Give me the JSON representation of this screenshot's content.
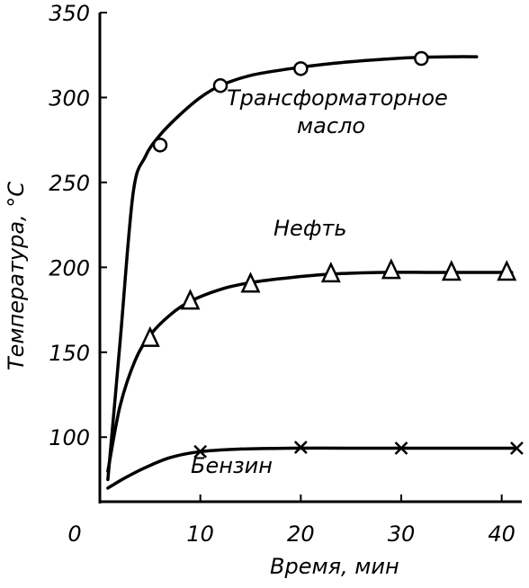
{
  "chart_data": {
    "type": "line",
    "xlabel": "Время, мин",
    "ylabel": "Температура, °C",
    "xlim": [
      0,
      42
    ],
    "ylim": [
      62,
      350
    ],
    "x_ticks": [
      {
        "value": 0,
        "label": "0"
      },
      {
        "value": 10,
        "label": "10"
      },
      {
        "value": 20,
        "label": "20"
      },
      {
        "value": 30,
        "label": "30"
      },
      {
        "value": 40,
        "label": "40"
      }
    ],
    "y_ticks": [
      {
        "value": 100,
        "label": "100"
      },
      {
        "value": 150,
        "label": "150"
      },
      {
        "value": 200,
        "label": "200"
      },
      {
        "value": 250,
        "label": "250"
      },
      {
        "value": 300,
        "label": "300"
      },
      {
        "value": 350,
        "label": "350"
      }
    ],
    "grid": false,
    "legend": "none",
    "series": [
      {
        "name": "Трансформаторное масло",
        "label_lines": [
          "Трансформаторное",
          "масло"
        ],
        "marker": "circle",
        "curve": [
          [
            0.8,
            75
          ],
          [
            2,
            155
          ],
          [
            3.3,
            243
          ],
          [
            4.5,
            265
          ],
          [
            6,
            278
          ],
          [
            8,
            290
          ],
          [
            10,
            300
          ],
          [
            12,
            307
          ],
          [
            15,
            313
          ],
          [
            19,
            317
          ],
          [
            23,
            320
          ],
          [
            27,
            322
          ],
          [
            31,
            323.5
          ],
          [
            35,
            324
          ],
          [
            37.5,
            324
          ]
        ],
        "points": [
          [
            6,
            272
          ],
          [
            12,
            307
          ],
          [
            20,
            317
          ],
          [
            32,
            323
          ]
        ]
      },
      {
        "name": "Нефть",
        "label_lines": [
          "Нефть"
        ],
        "marker": "triangle",
        "curve": [
          [
            0.8,
            80
          ],
          [
            2,
            118
          ],
          [
            3.5,
            145
          ],
          [
            5,
            160
          ],
          [
            7,
            172
          ],
          [
            9,
            180
          ],
          [
            12,
            187
          ],
          [
            15,
            191
          ],
          [
            19,
            194
          ],
          [
            23,
            196
          ],
          [
            28,
            197
          ],
          [
            33,
            197
          ],
          [
            38,
            197
          ],
          [
            41,
            197
          ]
        ],
        "points": [
          [
            5,
            158
          ],
          [
            9,
            180
          ],
          [
            15,
            190
          ],
          [
            23,
            196
          ],
          [
            29,
            198
          ],
          [
            35,
            197
          ],
          [
            40.5,
            197
          ]
        ]
      },
      {
        "name": "Бензин",
        "label_lines": [
          "Бензин"
        ],
        "marker": "x",
        "curve": [
          [
            0.8,
            70
          ],
          [
            2.5,
            76
          ],
          [
            4.5,
            82
          ],
          [
            7,
            88
          ],
          [
            10,
            91.5
          ],
          [
            14,
            93
          ],
          [
            19,
            93.5
          ],
          [
            25,
            93.5
          ],
          [
            30,
            93.5
          ],
          [
            35,
            93.5
          ],
          [
            41.5,
            93.5
          ]
        ],
        "points": [
          [
            10,
            91.5
          ],
          [
            20,
            94
          ],
          [
            30,
            93.5
          ],
          [
            41.5,
            93.5
          ]
        ]
      }
    ]
  }
}
